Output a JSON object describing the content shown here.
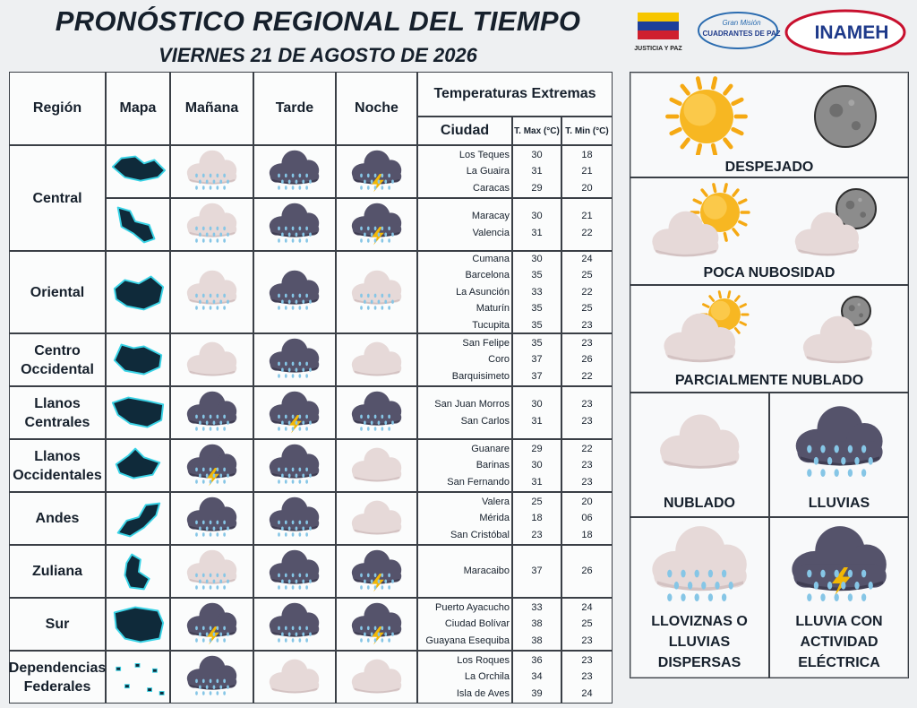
{
  "header": {
    "title": "PRONÓSTICO REGIONAL DEL TIEMPO",
    "subtitle": "VIERNES 21 DE AGOSTO DE 2026"
  },
  "logos": {
    "ministry": "JUSTICIA Y PAZ",
    "mission_top": "Gran Misión",
    "mission": "CUADRANTES DE PAZ",
    "institute": "INAMEH"
  },
  "table": {
    "headers": {
      "region": "Región",
      "map": "Mapa",
      "morning": "Mañana",
      "afternoon": "Tarde",
      "night": "Noche",
      "temperatures": "Temperaturas  Extremas",
      "city": "Ciudad",
      "tmax": "T. Max (°C)",
      "tmin": "T. Min (°C)"
    },
    "regions": [
      {
        "name": "Central",
        "rows": [
          {
            "conditions": [
              5,
              4,
              6
            ],
            "cities": [
              {
                "name": "Los Teques",
                "tmax": "30",
                "tmin": "18"
              },
              {
                "name": "La Guaira",
                "tmax": "31",
                "tmin": "21"
              },
              {
                "name": "Caracas",
                "tmax": "29",
                "tmin": "20"
              }
            ]
          },
          {
            "conditions": [
              5,
              4,
              6
            ],
            "cities": [
              {
                "name": "Maracay",
                "tmax": "30",
                "tmin": "21"
              },
              {
                "name": "Valencia",
                "tmax": "31",
                "tmin": "22"
              }
            ]
          }
        ]
      },
      {
        "name": "Oriental",
        "rows": [
          {
            "conditions": [
              5,
              4,
              5
            ],
            "cities": [
              {
                "name": "Cumana",
                "tmax": "30",
                "tmin": "24"
              },
              {
                "name": "Barcelona",
                "tmax": "35",
                "tmin": "25"
              },
              {
                "name": "La Asunción",
                "tmax": "33",
                "tmin": "22"
              },
              {
                "name": "Maturín",
                "tmax": "35",
                "tmin": "25"
              },
              {
                "name": "Tucupita",
                "tmax": "35",
                "tmin": "23"
              }
            ]
          }
        ]
      },
      {
        "name": "Centro Occidental",
        "rows": [
          {
            "conditions": [
              3,
              4,
              3
            ],
            "cities": [
              {
                "name": "San Felipe",
                "tmax": "35",
                "tmin": "23"
              },
              {
                "name": "Coro",
                "tmax": "37",
                "tmin": "26"
              },
              {
                "name": "Barquisimeto",
                "tmax": "37",
                "tmin": "22"
              }
            ]
          }
        ]
      },
      {
        "name": "Llanos Centrales",
        "rows": [
          {
            "conditions": [
              4,
              6,
              4
            ],
            "cities": [
              {
                "name": "San Juan Morros",
                "tmax": "30",
                "tmin": "23"
              },
              {
                "name": "San Carlos",
                "tmax": "31",
                "tmin": "23"
              }
            ]
          }
        ]
      },
      {
        "name": "Llanos Occidentales",
        "rows": [
          {
            "conditions": [
              6,
              4,
              3
            ],
            "cities": [
              {
                "name": "Guanare",
                "tmax": "29",
                "tmin": "22"
              },
              {
                "name": "Barinas",
                "tmax": "30",
                "tmin": "23"
              },
              {
                "name": "San Fernando",
                "tmax": "31",
                "tmin": "23"
              }
            ]
          }
        ]
      },
      {
        "name": "Andes",
        "rows": [
          {
            "conditions": [
              4,
              4,
              3
            ],
            "cities": [
              {
                "name": "Valera",
                "tmax": "25",
                "tmin": "20"
              },
              {
                "name": "Mérida",
                "tmax": "18",
                "tmin": "06"
              },
              {
                "name": "San Cristóbal",
                "tmax": "23",
                "tmin": "18"
              }
            ]
          }
        ]
      },
      {
        "name": "Zuliana",
        "rows": [
          {
            "conditions": [
              5,
              4,
              6
            ],
            "cities": [
              {
                "name": "Maracaibo",
                "tmax": "37",
                "tmin": "26"
              }
            ]
          }
        ]
      },
      {
        "name": "Sur",
        "rows": [
          {
            "conditions": [
              6,
              4,
              6
            ],
            "cities": [
              {
                "name": "Puerto Ayacucho",
                "tmax": "33",
                "tmin": "24"
              },
              {
                "name": "Ciudad Bolívar",
                "tmax": "38",
                "tmin": "25"
              },
              {
                "name": "Guayana Esequiba",
                "tmax": "38",
                "tmin": "23"
              }
            ]
          }
        ]
      },
      {
        "name": "Dependencias Federales",
        "rows": [
          {
            "conditions": [
              4,
              3,
              3
            ],
            "cities": [
              {
                "name": "Los Roques",
                "tmax": "36",
                "tmin": "23"
              },
              {
                "name": "La Orchila",
                "tmax": "34",
                "tmin": "23"
              },
              {
                "name": "Isla de Aves",
                "tmax": "39",
                "tmin": "24"
              }
            ]
          }
        ]
      }
    ]
  },
  "legend": [
    "DESPEJADO",
    "POCA NUBOSIDAD",
    "PARCIALMENTE NUBLADO",
    "NUBLADO",
    "LLUVIAS",
    "LLOVIZNAS O LLUVIAS DISPERSAS",
    "LLUVIA CON ACTIVIDAD ELÉCTRICA"
  ]
}
